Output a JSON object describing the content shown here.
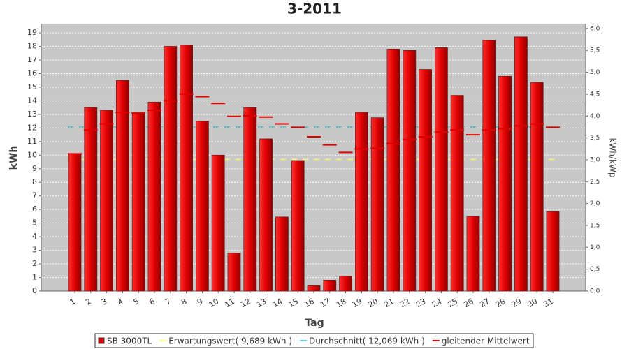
{
  "chart_data": {
    "type": "bar",
    "title": "3-2011",
    "x_label": "Tag",
    "y_label": "kWh",
    "y2_label": "kWh/kWp",
    "categories": [
      "1",
      "2",
      "3",
      "4",
      "5",
      "6",
      "7",
      "8",
      "9",
      "10",
      "11",
      "12",
      "13",
      "14",
      "15",
      "16",
      "17",
      "18",
      "19",
      "20",
      "21",
      "22",
      "23",
      "24",
      "25",
      "26",
      "27",
      "28",
      "29",
      "30",
      "31"
    ],
    "series": [
      {
        "name": "SB 3000TL",
        "color": "#e00000",
        "values": [
          10.1,
          13.5,
          13.3,
          15.5,
          13.1,
          13.9,
          18.0,
          18.1,
          12.5,
          10.0,
          2.8,
          13.5,
          11.2,
          5.45,
          9.6,
          0.4,
          0.8,
          1.1,
          13.15,
          12.75,
          17.8,
          17.7,
          16.3,
          17.9,
          14.4,
          5.5,
          18.45,
          15.8,
          18.7,
          15.35,
          5.85
        ]
      },
      {
        "name": "Erwartungswert( 9,689 kWh )",
        "color": "#ffff66",
        "value": 9.689
      },
      {
        "name": "Durchschnitt( 12,069 kWh )",
        "color": "#33bbcc",
        "value": 12.069
      },
      {
        "name": "gleitender Mittelwert",
        "color": "#e00000",
        "values": [
          10.1,
          11.85,
          12.3,
          13.15,
          13.1,
          13.3,
          14.0,
          14.5,
          14.3,
          13.8,
          12.85,
          12.9,
          12.8,
          12.3,
          12.05,
          11.35,
          10.75,
          10.2,
          10.45,
          10.5,
          10.85,
          11.15,
          11.35,
          11.7,
          11.85,
          11.5,
          11.85,
          11.95,
          12.15,
          12.3,
          12.05
        ]
      }
    ],
    "ylim": [
      0,
      19.67
    ],
    "yticks": [
      0,
      1,
      2,
      3,
      4,
      5,
      6,
      7,
      8,
      9,
      10,
      11,
      12,
      13,
      14,
      15,
      16,
      17,
      18,
      19
    ],
    "y2lim": [
      0,
      6.11
    ],
    "y2ticks": [
      {
        "value": 0,
        "label": "0,0"
      },
      {
        "value": 0.5,
        "label": "0,5"
      },
      {
        "value": 1,
        "label": "1,0"
      },
      {
        "value": 1.5,
        "label": "1,5"
      },
      {
        "value": 2,
        "label": "2,0"
      },
      {
        "value": 2.5,
        "label": "2,5"
      },
      {
        "value": 3,
        "label": "3,0"
      },
      {
        "value": 3.5,
        "label": "3,5"
      },
      {
        "value": 4,
        "label": "4,0"
      },
      {
        "value": 4.5,
        "label": "4,5"
      },
      {
        "value": 5,
        "label": "5,0"
      },
      {
        "value": 5.5,
        "label": "5,5"
      },
      {
        "value": 6,
        "label": "6,0"
      }
    ],
    "grid": true
  }
}
